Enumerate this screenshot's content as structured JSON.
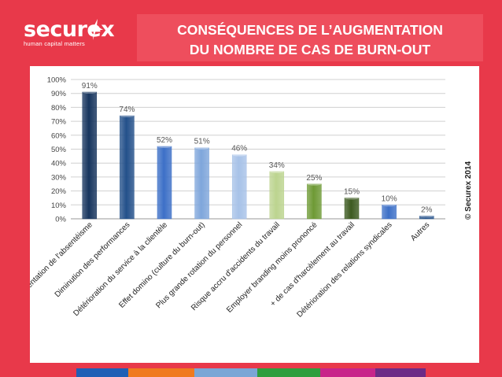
{
  "logo": {
    "wordmark": "securex",
    "tagline": "human capital matters",
    "icon": "securex-star-logo-icon"
  },
  "title": {
    "line1": "CONSÉQUENCES DE L’AUGMENTATION",
    "line2": "DU NOMBRE DE CAS DE BURN-OUT"
  },
  "copyright": "© Securex 2014",
  "colors": {
    "background": "#e8394a",
    "strip": [
      "#1f5fb5",
      "#f07a1e",
      "#7aa6d6",
      "#2e9e3e",
      "#c8248a",
      "#6c2b86",
      "#e8394a"
    ]
  },
  "chart_data": {
    "type": "bar",
    "title": "",
    "xlabel": "",
    "ylabel": "",
    "ylim": [
      0,
      100
    ],
    "yticks": [
      "0%",
      "10%",
      "20%",
      "30%",
      "40%",
      "50%",
      "60%",
      "70%",
      "80%",
      "90%",
      "100%"
    ],
    "grid": true,
    "legend": "none",
    "categories": [
      "Augmentation de l'absentéisme",
      "Diminution des performances",
      "Détérioration du service à la clientèle",
      "Effet domino (culture du burn-out)",
      "Plus grande rotation du personnel",
      "Risque accru d'accidents du travail",
      "Employer branding moins prononcé",
      "+ de cas d'harcèlement au travail",
      "Détérioration des relations syndicales",
      "Autres"
    ],
    "values": [
      91,
      74,
      52,
      51,
      46,
      34,
      25,
      15,
      10,
      2
    ],
    "labels": [
      "91%",
      "74%",
      "52%",
      "51%",
      "46%",
      "34%",
      "25%",
      "15%",
      "10%",
      "2%"
    ],
    "colors": [
      "#17355e",
      "#23508a",
      "#3d70c7",
      "#7fa6db",
      "#a7c2e8",
      "#bcd48f",
      "#6e9a35",
      "#3c5a20",
      "#3d70c7",
      "#23508a"
    ]
  }
}
